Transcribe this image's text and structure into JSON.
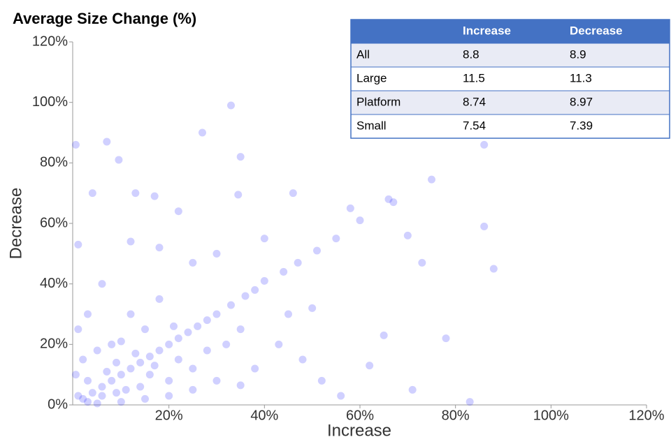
{
  "chart_data": {
    "type": "scatter",
    "title": "Average Size Change (%)",
    "x_label": "Increase",
    "y_label": "Decrease",
    "color": "#2a2aff",
    "xlim": [
      0,
      120
    ],
    "ylim": [
      0,
      120
    ],
    "xticks": [
      {
        "value": 20,
        "label": "20%"
      },
      {
        "value": 40,
        "label": "40%"
      },
      {
        "value": 60,
        "label": "60%"
      },
      {
        "value": 80,
        "label": "80%"
      },
      {
        "value": 100,
        "label": "100%"
      },
      {
        "value": 120,
        "label": "120%"
      }
    ],
    "yticks": [
      {
        "value": 0,
        "label": "0%"
      },
      {
        "value": 20,
        "label": "20%"
      },
      {
        "value": 40,
        "label": "40%"
      },
      {
        "value": 60,
        "label": "60%"
      },
      {
        "value": 80,
        "label": "80%"
      },
      {
        "value": 100,
        "label": "100%"
      },
      {
        "value": 120,
        "label": "120%"
      }
    ],
    "x": [
      33,
      27,
      9.5,
      7,
      0.5,
      86,
      35,
      34.5,
      75,
      66,
      67,
      86,
      88,
      78,
      83,
      71,
      70,
      35,
      51,
      40,
      55,
      60,
      50,
      45,
      62,
      56,
      65,
      73,
      47,
      44,
      38,
      36,
      33,
      30,
      28,
      26,
      24,
      22,
      20,
      18,
      16,
      14,
      12,
      10,
      8,
      6,
      4,
      2,
      10,
      4,
      1,
      13,
      17,
      22,
      12,
      18,
      25,
      30,
      40,
      46,
      58,
      43,
      48,
      52,
      38,
      30,
      25,
      20,
      15,
      10,
      5,
      3,
      1,
      0.5,
      2,
      1,
      3,
      6,
      8,
      12,
      15,
      18,
      22,
      25,
      28,
      32,
      35,
      20,
      16,
      14,
      9,
      7,
      5,
      3,
      6,
      11,
      13,
      17,
      21,
      9
    ],
    "y": [
      99,
      90,
      81,
      87,
      86,
      86,
      82,
      69.5,
      74.5,
      68,
      67,
      59,
      45,
      22,
      1,
      5,
      56,
      6.5,
      51,
      41,
      55,
      61,
      32,
      30,
      13,
      3,
      23,
      47,
      47,
      44,
      38,
      36,
      33,
      30,
      28,
      26,
      24,
      22,
      20,
      18,
      16,
      14,
      12,
      10,
      8,
      6,
      4,
      2,
      21,
      70,
      53,
      70,
      69,
      64,
      54,
      52,
      47,
      50,
      55,
      70,
      65,
      20,
      15,
      8,
      12,
      8,
      5,
      3,
      2,
      1,
      0.5,
      1,
      3,
      10,
      15,
      25,
      30,
      40,
      20,
      30,
      25,
      35,
      15,
      12,
      18,
      20,
      25,
      8,
      10,
      6,
      14,
      11,
      18,
      8,
      3,
      5,
      17,
      13,
      26,
      4
    ],
    "table": {
      "columns": [
        "Increase",
        "Decrease"
      ],
      "rows": [
        {
          "label": "All",
          "values": [
            8.8,
            8.9
          ]
        },
        {
          "label": "Large",
          "values": [
            11.5,
            11.3
          ]
        },
        {
          "label": "Platform",
          "values": [
            8.74,
            8.97
          ]
        },
        {
          "label": "Small",
          "values": [
            7.54,
            7.39
          ]
        }
      ]
    }
  }
}
